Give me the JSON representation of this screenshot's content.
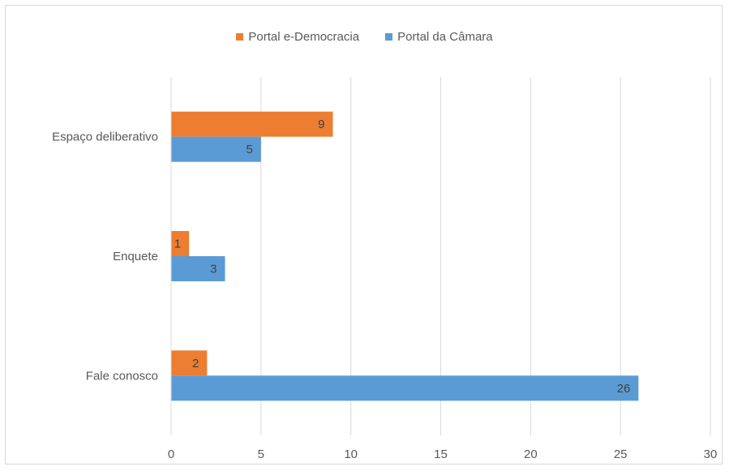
{
  "chart_data": {
    "type": "bar",
    "orientation": "horizontal",
    "categories": [
      "Espaço deliberativo",
      "Enquete",
      "Fale conosco"
    ],
    "series": [
      {
        "name": "Portal e-Democracia",
        "values": [
          9,
          1,
          2
        ]
      },
      {
        "name": "Portal da Câmara",
        "values": [
          5,
          3,
          26
        ]
      }
    ],
    "x_ticks": [
      "0",
      "5",
      "10",
      "15",
      "20",
      "25",
      "30"
    ],
    "xlim": [
      0,
      30
    ],
    "grid": true,
    "legend": "top-center",
    "data_labels": true,
    "colors": {
      "Portal e-Democracia": "#ed7d31",
      "Portal da Câmara": "#5b9bd5"
    }
  }
}
